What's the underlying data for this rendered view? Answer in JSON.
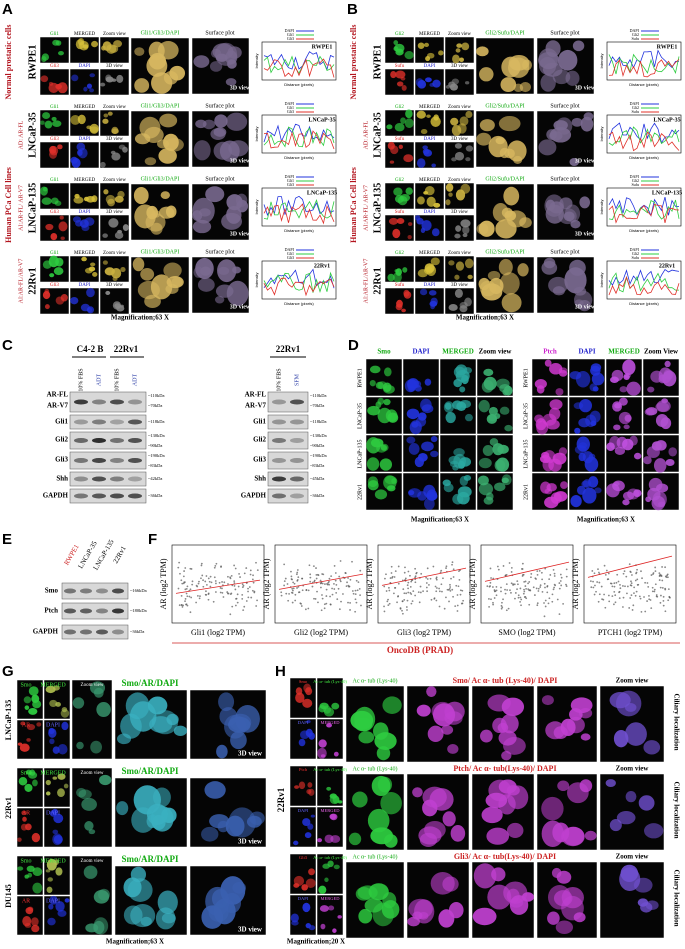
{
  "panel_a": {
    "letter": "A",
    "groups": [
      "Normal prostatic cells",
      "Human PCa Cell lines"
    ],
    "cells": [
      "RWPE1",
      "LNCaP-35",
      "LNCaP-135",
      "22Rv1"
    ],
    "subtypes": [
      "AD: AR-FL",
      "AI:AR-FL/ AR-V7",
      "AI:AR-FL/AR-V7"
    ],
    "tiles": [
      "Gli1",
      "MERGED",
      "Zoom view",
      "Gli3",
      "DAPI",
      "3D view"
    ],
    "overlay": "Gli1/Gli3/DAPI",
    "surface": "Surface plot",
    "view3d": "3D view",
    "legend": [
      "DAPI",
      "Gli1",
      "Gli3"
    ],
    "plot_y": "Intensity",
    "plot_x": "Distance (pixels)",
    "magnification": "Magnification;63 X"
  },
  "panel_b": {
    "letter": "B",
    "groups": [
      "Normal prostatic cells",
      "Human PCa Cell lines"
    ],
    "cells": [
      "RWPE1",
      "LNCaP-35",
      "LNCaP-135",
      "22Rv1"
    ],
    "subtypes": [
      "AD: AR-FL",
      "AI:AR-FL/ AR-V7",
      "AI:AR-FL/AR-V7"
    ],
    "tiles": [
      "Gli2",
      "MERGED",
      "Zoom view",
      "Sufu",
      "DAPI",
      "3D view"
    ],
    "overlay": "Gli2/Sufu/DAPI",
    "surface": "Surface plot",
    "view3d": "3D view",
    "legend": [
      "DAPI",
      "Gli2",
      "Sufu"
    ],
    "plot_y": "Intensity",
    "plot_x": "Distance (pixels)",
    "magnification": "Magnification;63 X"
  },
  "panel_c": {
    "letter": "C",
    "left": {
      "groups": [
        "C4-2 B",
        "22Rv1"
      ],
      "lanes": [
        "10% FBS",
        "ADT",
        "10% FBS",
        "ADT"
      ],
      "proteins": [
        "AR-FL",
        "AR-V7",
        "Gli1",
        "Gli2",
        "Gli3",
        "Shh",
        "GAPDH"
      ],
      "sizes": [
        "~110kDa",
        "~70kDa",
        "~118kDa",
        "~130kDa",
        "~90kDa",
        "~190kDa",
        "~83kDa",
        "~42kDa",
        "~36kDa"
      ]
    },
    "right": {
      "group": "22Rv1",
      "lanes": [
        "10% FBS",
        "SFM"
      ],
      "proteins": [
        "AR-FL",
        "AR-V7",
        "Gli1",
        "Gli2",
        "Gli3",
        "Shh",
        "GAPDH"
      ],
      "sizes": [
        "~110kDa",
        "~70kDa",
        "~118kDa",
        "~130kDa",
        "~90kDa",
        "~190kDa",
        "~83kDa",
        "~45kDa",
        "~36kDa"
      ]
    }
  },
  "panel_d": {
    "letter": "D",
    "left": [
      "Smo",
      "DAPI",
      "MERGED",
      "Zoom view"
    ],
    "right": [
      "Ptch",
      "DAPI",
      "MERGED",
      "Zoom View"
    ],
    "cells": [
      "RWPE1",
      "LNCaP-35",
      "LNCaP-135",
      "22Rv1"
    ],
    "magnification": "Magnification;63 X"
  },
  "panel_e": {
    "letter": "E",
    "lanes": [
      "RWPE1",
      "LNCaP-35",
      "LNCaP-135",
      "22Rv1"
    ],
    "proteins": [
      "Smo",
      "Ptch",
      "GAPDH"
    ],
    "sizes": [
      "~166kDa",
      "~180kDa",
      "~36kDa"
    ]
  },
  "panel_f": {
    "letter": "F",
    "y_label": "AR (log2 TPM)",
    "x_labels": [
      "Gli1 (log2 TPM)",
      "Gli2 (log2 TPM)",
      "Gli3 (log2 TPM)",
      "SMO (log2 TPM)",
      "PTCH1 (log2 TPM)"
    ],
    "source": "OncoDB (PRAD)"
  },
  "panel_g": {
    "letter": "G",
    "cells": [
      "LNCaP-135",
      "22Rv1",
      "DU145"
    ],
    "tiles": [
      "Smo",
      "MERGED",
      "AR",
      "DAPI"
    ],
    "zoom": "Zoom view",
    "overlay": "Smo/AR/DAPI",
    "view3d": "3D view",
    "magnification": "Magnification;63 X"
  },
  "panel_h": {
    "letter": "H",
    "cell": "22Rv1",
    "markers": [
      "Smo",
      "Ptch",
      "Gli3"
    ],
    "tubulin": "Ac α- tub (Lys-40)",
    "tiles": [
      "DAPI",
      "MERGED"
    ],
    "overlays": [
      "Smo/ Ac α- tub (Lys-40)/ DAPI",
      "Ptch/ Ac α- tub(Lys-40)/ DAPI",
      "Gli3/ Ac α- tub(Lys-40)/ DAPI"
    ],
    "zoom": "Zoom view",
    "side": "Ciliary localization",
    "magnification": "Magnification;20 X"
  }
}
